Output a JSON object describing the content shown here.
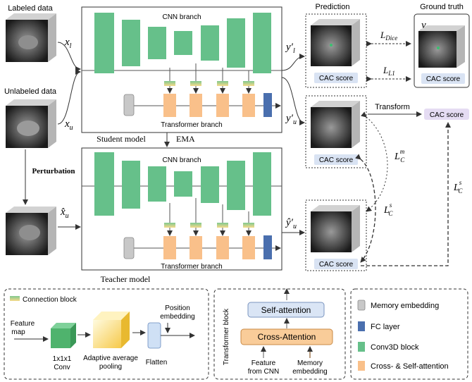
{
  "inputs": {
    "labeled_title": "Labeled data",
    "unlabeled_title": "Unlabeled data",
    "perturbation": "Perturbation",
    "x_l": "x",
    "x_l_sub": "l",
    "x_u": "x",
    "x_u_sub": "u",
    "xhat_u": "x̂",
    "xhat_u_sub": "u"
  },
  "student": {
    "cnn_label": "CNN branch",
    "transformer_label": "Transformer branch",
    "model_label": "Student model"
  },
  "ema": "EMA",
  "teacher": {
    "cnn_label": "CNN branch",
    "transformer_label": "Transformer branch",
    "model_label": "Teacher model"
  },
  "outputs": {
    "y_l_prime": "y′",
    "y_l_sub": "l",
    "y_u_prime": "y′",
    "y_u_sub": "u",
    "yhat_u_prime": "ŷ′",
    "yhat_u_sub": "u",
    "prediction_title": "Prediction",
    "ground_truth_title": "Ground truth",
    "y_l": "y",
    "y_l_gt_sub": "l",
    "cac_score": "CAC score",
    "transform": "Transform"
  },
  "losses": {
    "dice": "L",
    "dice_sub": "Dice",
    "l1": "L",
    "l1_sub": "L1",
    "lcm": "L",
    "lcm_sub": "C",
    "lcm_sup": "m",
    "lcs_left": "L",
    "lcs_left_sub": "C",
    "lcs_left_sup": "s",
    "lcs_right": "L",
    "lcs_right_sub": "C",
    "lcs_right_sup": "s"
  },
  "connection_panel": {
    "title": "Connection block",
    "feature_map": "Feature map",
    "conv": "1x1x1 Conv",
    "pooling": "Adaptive average pooling",
    "flatten": "Flatten",
    "position_embedding": "Position embedding"
  },
  "transformer_panel": {
    "block_label": "Transformer block",
    "self_attention": "Self-attention",
    "cross_attention": "Cross-Attention",
    "feature_from_cnn": "Feature from CNN",
    "memory_embedding": "Memory embedding"
  },
  "legend": {
    "items": [
      "Memory embedding",
      "FC layer",
      "Conv3D block",
      "Cross- & Self-attention"
    ]
  },
  "colors": {
    "conv_green": "#66c08a",
    "attention_orange": "#f9c08a",
    "memory_gray": "#c8c8c8",
    "fc_blue": "#4a6fae",
    "cac_score_fill": "#d9e3f3",
    "cac_score_purple": "#e5dcf3",
    "self_attention_fill": "#dae5f5",
    "cross_attention_fill": "#f9cc99"
  }
}
